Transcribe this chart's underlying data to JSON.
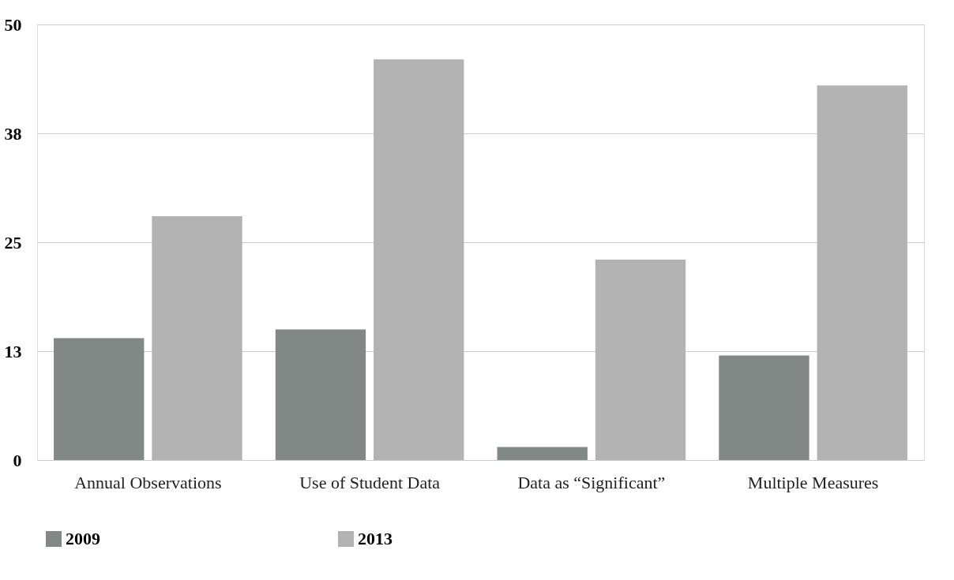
{
  "chart_data": {
    "type": "bar",
    "categories": [
      "Annual Observations",
      "Use of Student Data",
      "Data as “Significant”",
      "Multiple Measures"
    ],
    "series": [
      {
        "name": "2009",
        "color": "#828885",
        "values": [
          14,
          15,
          1.5,
          12
        ]
      },
      {
        "name": "2013",
        "color": "#b3b3b3",
        "values": [
          28,
          46,
          23,
          43
        ]
      }
    ],
    "ylim": [
      0,
      50
    ],
    "yticks": [
      0,
      {
        "value": 12.5,
        "label": "13"
      },
      25,
      {
        "value": 37.5,
        "label": "38"
      },
      50
    ],
    "grid": "y",
    "legend": "bottom"
  }
}
